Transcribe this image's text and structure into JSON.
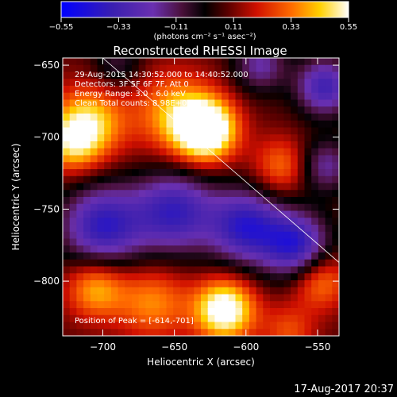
{
  "colorbar": {
    "tick_labels": [
      "-0.55",
      "-0.33",
      "-0.11",
      "0.11",
      "0.33",
      "0.55"
    ],
    "label": "(photons cm⁻² s⁻¹ asec⁻²)",
    "range": [
      -0.55,
      0.55
    ]
  },
  "chart_data": {
    "type": "heatmap",
    "title": "Reconstructed RHESSI Image",
    "xlabel": "Heliocentric X (arcsec)",
    "ylabel": "Heliocentric Y (arcsec)",
    "xlim": [
      -728,
      -535
    ],
    "ylim": [
      -838,
      -645
    ],
    "x_ticks": [
      -700,
      -650,
      -600,
      -550
    ],
    "y_ticks": [
      -650,
      -700,
      -750,
      -800
    ],
    "annotations": [
      "29-Aug-2015 14:30:52.000 to 14:40:52.000",
      "Detectors: 3F 5F 6F 7F, Att 0",
      "Energy Range: 3.0 - 6.0 keV",
      "Clean     Total counts: 8.98E+04"
    ],
    "peak_label": "Position of Peak = [-614,-701]",
    "peak_position": [
      -614,
      -701
    ],
    "blobs": [
      {
        "x": -628,
        "y": -695,
        "amp": 1.15,
        "sigma": 15
      },
      {
        "x": -650,
        "y": -683,
        "amp": 0.55,
        "sigma": 20
      },
      {
        "x": -710,
        "y": -690,
        "amp": 0.7,
        "sigma": 18
      },
      {
        "x": -722,
        "y": -705,
        "amp": 0.5,
        "sigma": 14
      },
      {
        "x": -615,
        "y": -820,
        "amp": 1.0,
        "sigma": 15
      },
      {
        "x": -665,
        "y": -815,
        "amp": 0.5,
        "sigma": 18
      },
      {
        "x": -705,
        "y": -805,
        "amp": 0.6,
        "sigma": 15
      },
      {
        "x": -575,
        "y": -720,
        "amp": 0.45,
        "sigma": 14
      },
      {
        "x": -548,
        "y": -800,
        "amp": 0.5,
        "sigma": 14
      },
      {
        "x": -570,
        "y": -835,
        "amp": 0.35,
        "sigma": 13
      },
      {
        "x": -700,
        "y": -762,
        "amp": -0.85,
        "sigma": 20
      },
      {
        "x": -650,
        "y": -752,
        "amp": -0.8,
        "sigma": 20
      },
      {
        "x": -600,
        "y": -762,
        "amp": -0.85,
        "sigma": 18
      },
      {
        "x": -565,
        "y": -775,
        "amp": -0.85,
        "sigma": 16
      },
      {
        "x": -545,
        "y": -665,
        "amp": -0.75,
        "sigma": 14
      },
      {
        "x": -590,
        "y": -650,
        "amp": -0.5,
        "sigma": 13
      },
      {
        "x": -545,
        "y": -720,
        "amp": -0.5,
        "sigma": 13
      },
      {
        "x": -690,
        "y": -650,
        "amp": -0.3,
        "sigma": 12
      }
    ],
    "limb_line": [
      [
        -700,
        -645
      ],
      [
        -535,
        -787
      ]
    ]
  },
  "footer": {
    "date_stamp": "17-Aug-2017 20:37"
  }
}
